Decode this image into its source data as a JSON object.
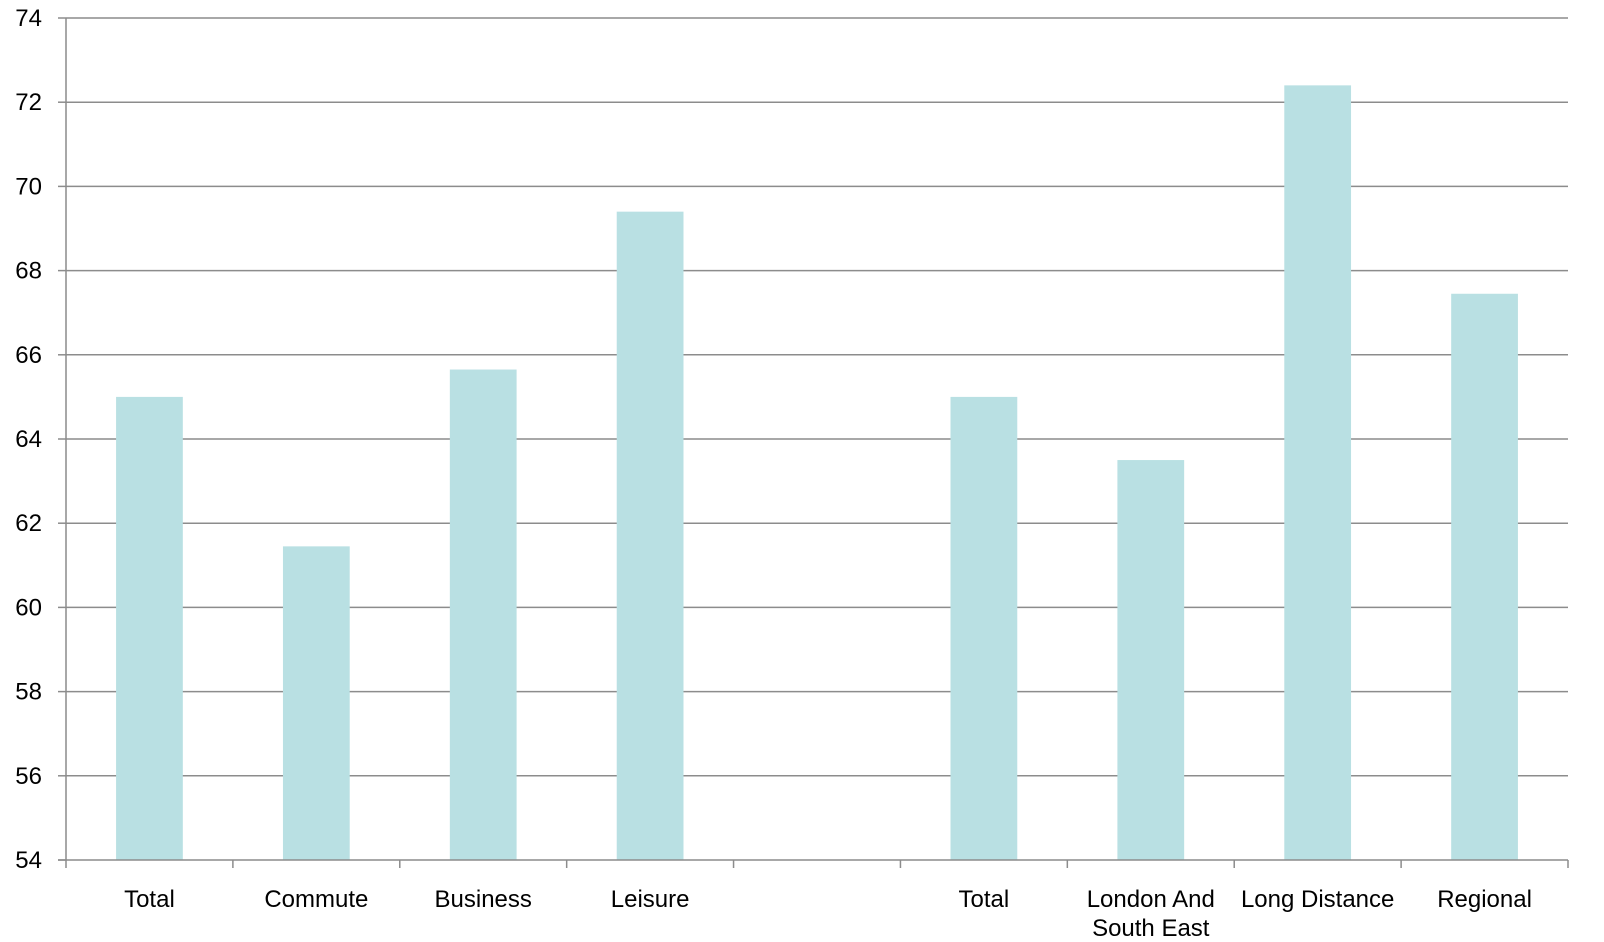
{
  "chart_data": {
    "type": "bar",
    "categories": [
      "Total",
      "Commute",
      "Business",
      "Leisure",
      "",
      "Total",
      "London And South East",
      "Long Distance",
      "Regional"
    ],
    "category_lines": [
      [
        "Total"
      ],
      [
        "Commute"
      ],
      [
        "Business"
      ],
      [
        "Leisure"
      ],
      [],
      [
        "Total"
      ],
      [
        "London And",
        "South East"
      ],
      [
        "Long Distance"
      ],
      [
        "Regional"
      ]
    ],
    "values": [
      65.0,
      61.45,
      65.65,
      69.4,
      null,
      65.0,
      63.5,
      72.4,
      67.45
    ],
    "ylim": [
      54,
      74
    ],
    "yticks": [
      54,
      56,
      58,
      60,
      62,
      64,
      66,
      68,
      70,
      72,
      74
    ],
    "title": "",
    "xlabel": "",
    "ylabel": "",
    "grid": true,
    "bar_color": "#b9e0e3",
    "grid_color": "#8c8c8c"
  }
}
